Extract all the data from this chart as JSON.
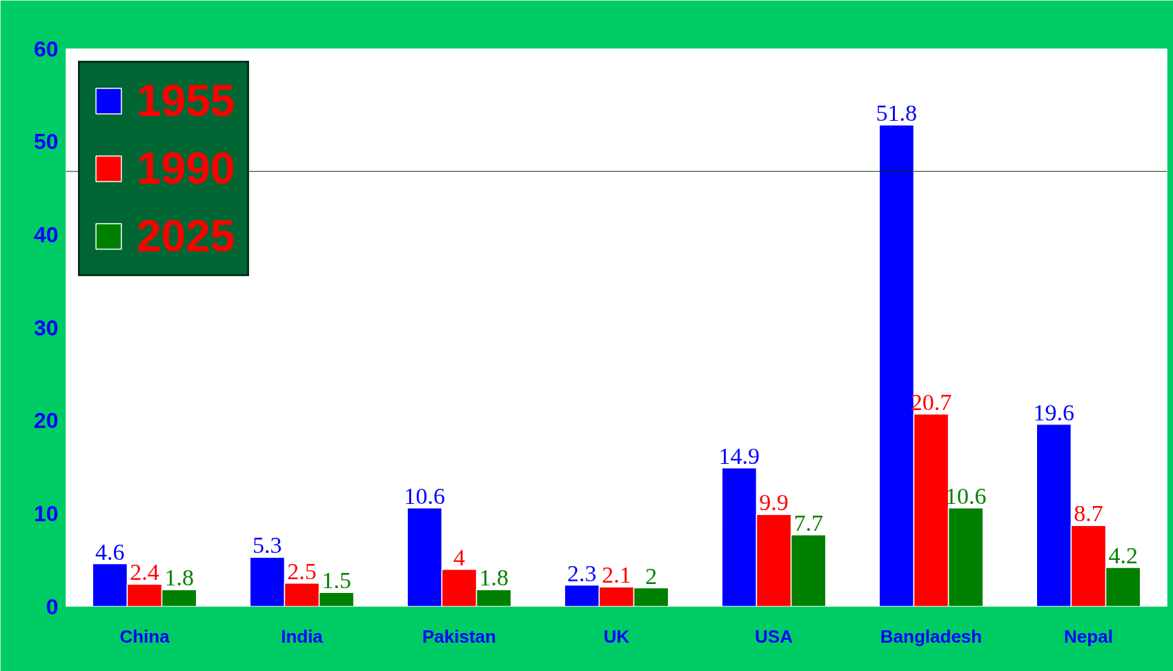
{
  "chart_data": {
    "type": "bar",
    "categories": [
      "China",
      "India",
      "Pakistan",
      "UK",
      "USA",
      "Bangladesh",
      "Nepal"
    ],
    "series": [
      {
        "name": "1955",
        "color": "#0000ff",
        "values": [
          4.6,
          5.3,
          10.6,
          2.3,
          14.9,
          51.8,
          19.6
        ]
      },
      {
        "name": "1990",
        "color": "#ff0000",
        "values": [
          2.4,
          2.5,
          4,
          2.1,
          9.9,
          20.7,
          8.7
        ]
      },
      {
        "name": "2025",
        "color": "#008000",
        "values": [
          1.8,
          1.5,
          1.8,
          2,
          7.7,
          10.6,
          4.2
        ]
      }
    ],
    "ylim": [
      0,
      60
    ],
    "yticks": [
      0,
      10,
      20,
      30,
      40,
      50,
      60
    ],
    "ref_lines": [
      {
        "axis": "y",
        "value": 46.8,
        "color": "#003300"
      }
    ],
    "data_labels": true,
    "grid": false,
    "legend": "top left"
  }
}
